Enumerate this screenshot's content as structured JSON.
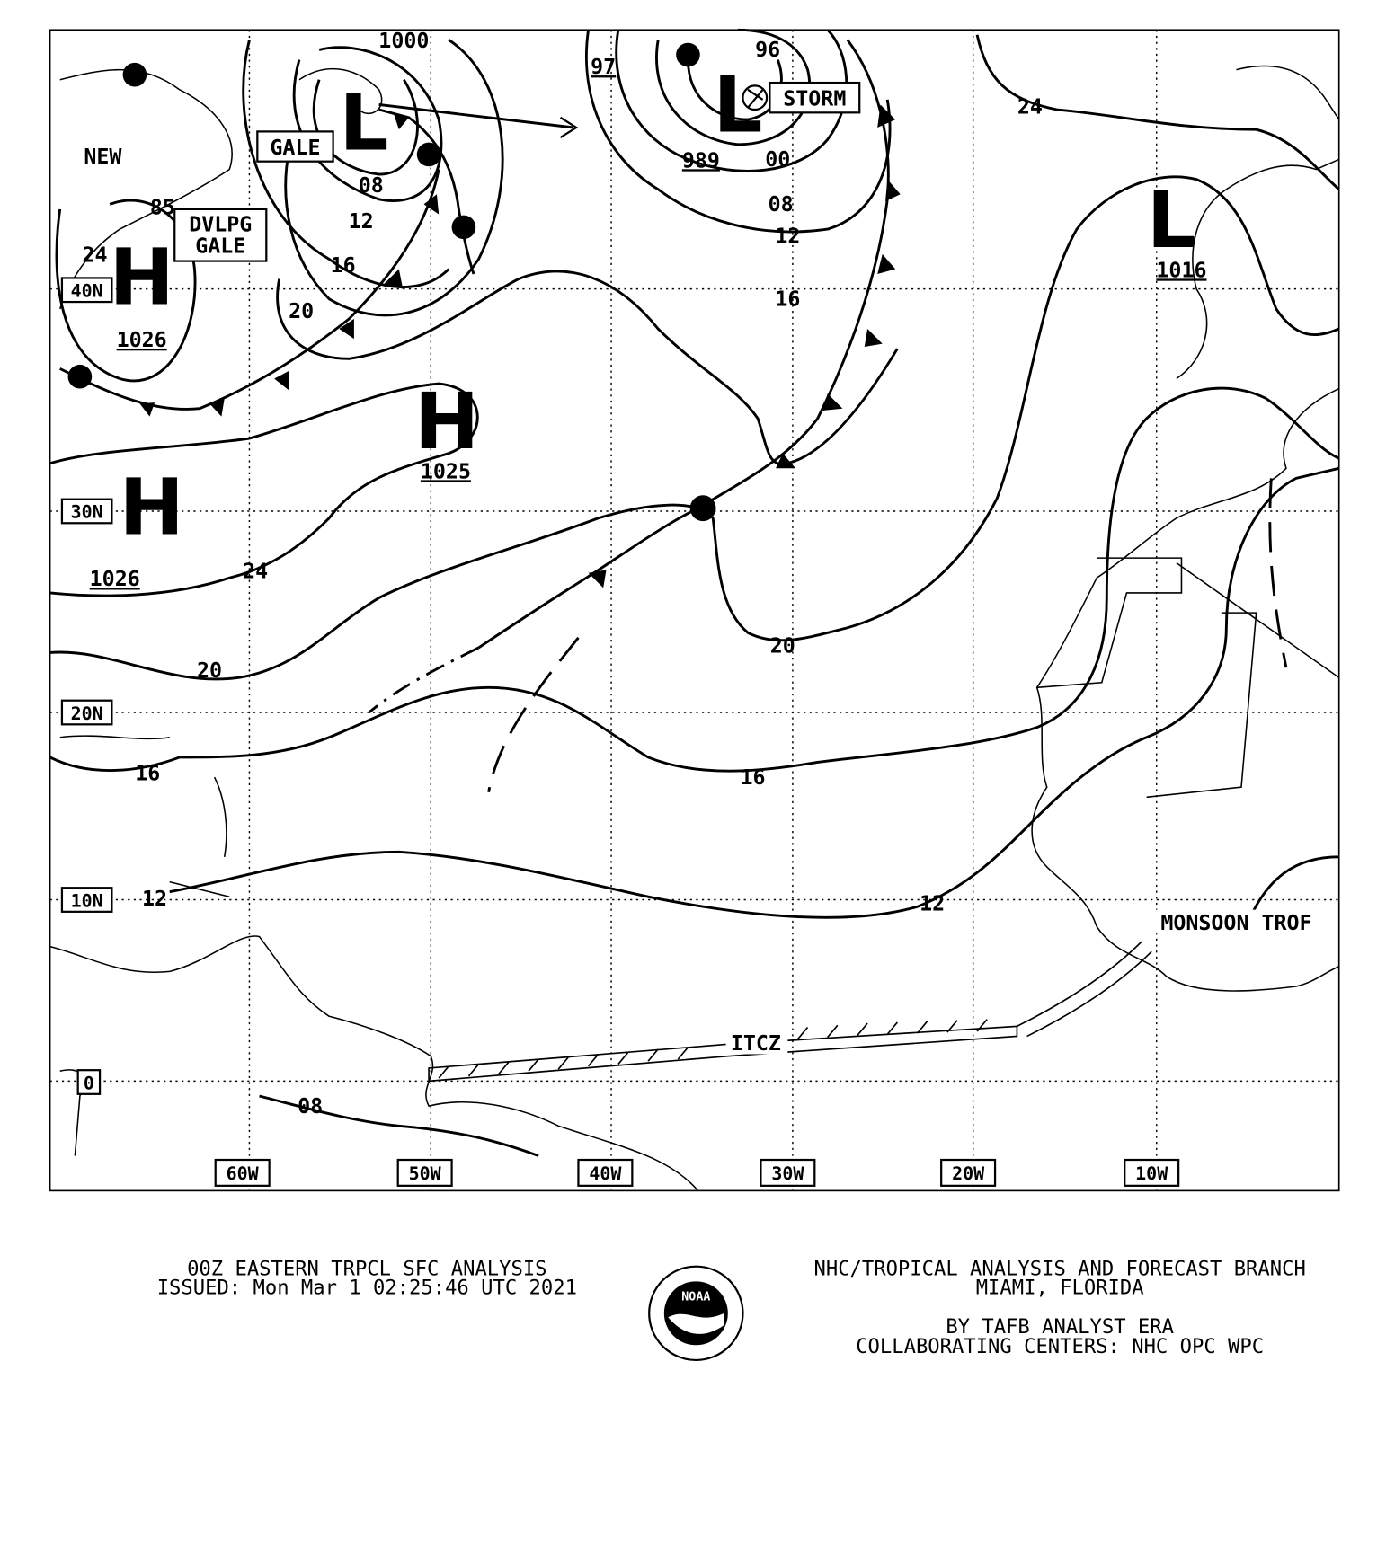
{
  "map": {
    "centers": [
      {
        "letter": "H",
        "pressure": "1026"
      },
      {
        "letter": "H",
        "pressure": "1025"
      },
      {
        "letter": "H",
        "pressure": "1026"
      },
      {
        "letter": "L",
        "pressure": "989"
      },
      {
        "letter": "L",
        "pressure": "1016"
      },
      {
        "letter": "L"
      }
    ],
    "isobar_labels": [
      "1000",
      "97",
      "96",
      "00",
      "08",
      "12",
      "16",
      "24",
      "08",
      "12",
      "16",
      "20",
      "24",
      "20",
      "16",
      "16",
      "20",
      "12",
      "12",
      "08",
      "85",
      "24"
    ],
    "boxes": {
      "gale": "GALE",
      "dvlpg_gale": [
        "DVLPG",
        "GALE"
      ],
      "storm": "STORM"
    },
    "latitudes": [
      "40N",
      "30N",
      "20N",
      "10N",
      "0"
    ],
    "longitudes": [
      "60W",
      "50W",
      "40W",
      "30W",
      "20W",
      "10W"
    ],
    "features": {
      "new": "NEW",
      "itcz": "ITCZ",
      "monsoon": "MONSOON TROF"
    },
    "footer": {
      "title": "00Z EASTERN TRPCL SFC ANALYSIS",
      "issued": "ISSUED: Mon Mar 1 02:25:46 UTC 2021",
      "branch": "NHC/TROPICAL ANALYSIS AND FORECAST BRANCH",
      "location": "MIAMI,  FLORIDA",
      "analyst": "BY TAFB ANALYST  ERA",
      "centers": "COLLABORATING CENTERS: NHC OPC WPC",
      "logo": "NOAA"
    }
  }
}
